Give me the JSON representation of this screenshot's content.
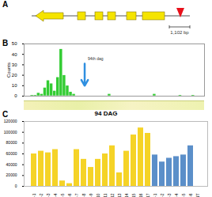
{
  "diagram": {
    "label": "A",
    "scale_bar": "1,102 bp"
  },
  "chart_data": [
    {
      "type": "histogram",
      "annotations": [
        {
          "text": "B"
        },
        {
          "text": "94th dag",
          "x": 94
        }
      ],
      "y_label": "Counts",
      "color": "#33cc33",
      "bins": [
        0,
        5,
        10,
        15,
        20,
        25,
        30,
        35,
        40,
        45,
        50,
        55,
        60,
        65,
        70,
        75,
        80,
        85,
        90,
        95,
        100,
        105,
        110,
        115,
        120,
        125,
        130,
        135,
        140,
        145,
        150,
        155,
        160,
        165,
        170,
        175,
        180,
        185,
        190,
        195,
        200,
        205,
        210,
        215,
        220,
        225,
        230,
        235,
        240,
        245,
        250,
        255,
        260,
        265,
        270,
        275,
        280
      ],
      "counts": [
        0,
        0,
        1,
        1,
        3,
        2,
        8,
        15,
        12,
        5,
        18,
        45,
        20,
        10,
        4,
        2,
        0,
        0,
        0,
        0,
        0,
        0,
        0,
        0,
        0,
        0,
        2,
        0,
        0,
        0,
        0,
        0,
        0,
        0,
        0,
        0,
        0,
        0,
        0,
        0,
        2,
        0,
        0,
        0,
        0,
        0,
        0,
        0,
        1,
        0,
        0,
        0,
        1,
        0,
        0,
        0
      ],
      "xlim": [
        0,
        280
      ],
      "ylim": [
        0,
        50
      ],
      "yticks": [
        0,
        10,
        20,
        30,
        40,
        50
      ],
      "tick_labels": "y"
    },
    {
      "type": "bar",
      "title": "94 DAG",
      "annotations": [
        {
          "text": "C"
        }
      ],
      "categories": [
        "AE-1",
        "AE-2",
        "AE-3",
        "AE-4",
        "AE-5",
        "AE-6",
        "AE-7",
        "AE-8",
        "AE-9",
        "AE-10",
        "AE-11",
        "AE-12",
        "AE-13",
        "AE-14",
        "AE-15",
        "AE-16",
        "AE-17",
        "WT-1",
        "WT-2",
        "WT-3",
        "WT-4",
        "WT-5",
        "WT-6",
        "NT"
      ],
      "values": [
        60000,
        65000,
        62000,
        68000,
        10000,
        5000,
        68000,
        50000,
        35000,
        50000,
        60000,
        75000,
        25000,
        65000,
        95000,
        108000,
        98000,
        58000,
        45000,
        52000,
        55000,
        58000,
        75000,
        0
      ],
      "colors": [
        "#f5d327",
        "#f5d327",
        "#f5d327",
        "#f5d327",
        "#f5d327",
        "#f5d327",
        "#f5d327",
        "#f5d327",
        "#f5d327",
        "#f5d327",
        "#f5d327",
        "#f5d327",
        "#f5d327",
        "#f5d327",
        "#f5d327",
        "#f5d327",
        "#f5d327",
        "#5b8fc9",
        "#5b8fc9",
        "#5b8fc9",
        "#5b8fc9",
        "#5b8fc9",
        "#5b8fc9",
        "#5b8fc9"
      ],
      "ylim": [
        0,
        120000
      ],
      "yticks": [
        0,
        20000,
        40000,
        60000,
        80000,
        100000,
        120000
      ]
    }
  ]
}
